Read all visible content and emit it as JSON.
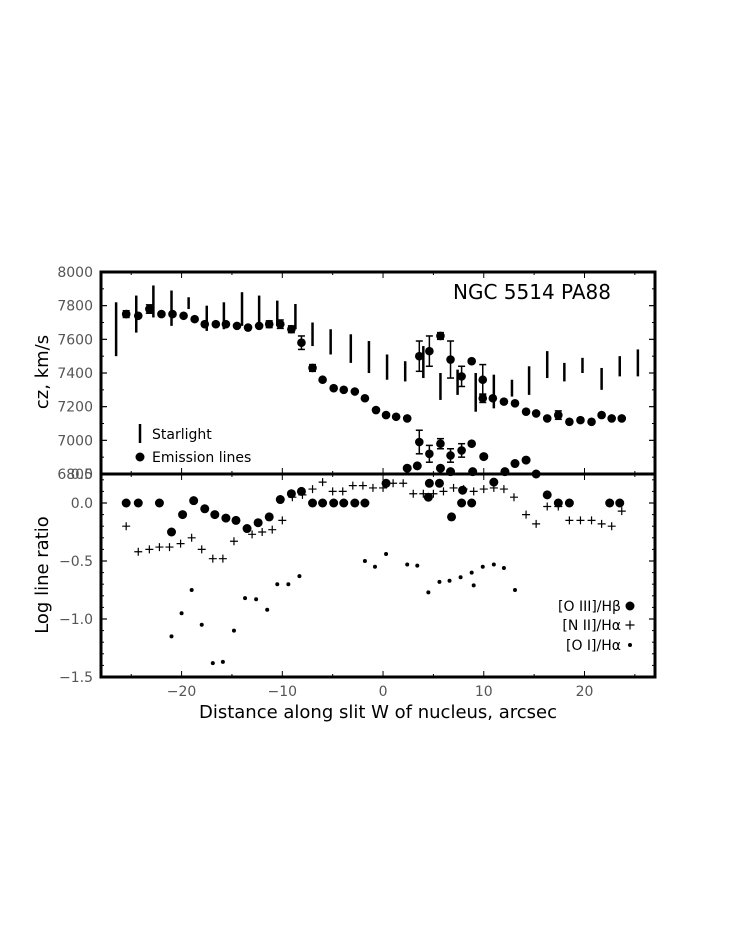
{
  "chart_data": [
    {
      "type": "scatter",
      "title": "NGC 5514 PA88",
      "ylabel": "cz, km/s",
      "xlim": [
        -28,
        27
      ],
      "ylim": [
        6800,
        8000
      ],
      "yticks": [
        6800,
        7000,
        7200,
        7400,
        7600,
        7800,
        8000
      ],
      "yticklabels": [
        "6800",
        "7000",
        "7200",
        "7400",
        "7600",
        "7800",
        "8000"
      ],
      "legend": {
        "placement": "bottom-left"
      },
      "series": [
        {
          "name": "Starlight",
          "marker": "vertical-bar",
          "points": [
            {
              "x": -26.5,
              "low": 7500,
              "high": 7820
            },
            {
              "x": -24.5,
              "low": 7640,
              "high": 7860
            },
            {
              "x": -22.8,
              "low": 7730,
              "high": 7920
            },
            {
              "x": -21.0,
              "low": 7680,
              "high": 7890
            },
            {
              "x": -19.3,
              "low": 7780,
              "high": 7850
            },
            {
              "x": -17.5,
              "low": 7650,
              "high": 7800
            },
            {
              "x": -15.8,
              "low": 7660,
              "high": 7820
            },
            {
              "x": -14.0,
              "low": 7680,
              "high": 7880
            },
            {
              "x": -12.3,
              "low": 7680,
              "high": 7860
            },
            {
              "x": -10.5,
              "low": 7680,
              "high": 7830
            },
            {
              "x": -8.7,
              "low": 7660,
              "high": 7810
            },
            {
              "x": -7.0,
              "low": 7560,
              "high": 7700
            },
            {
              "x": -5.2,
              "low": 7510,
              "high": 7660
            },
            {
              "x": -3.2,
              "low": 7460,
              "high": 7630
            },
            {
              "x": -1.4,
              "low": 7400,
              "high": 7590
            },
            {
              "x": 0.4,
              "low": 7360,
              "high": 7510
            },
            {
              "x": 2.2,
              "low": 7350,
              "high": 7470
            },
            {
              "x": 4.0,
              "low": 7370,
              "high": 7560
            },
            {
              "x": 5.7,
              "low": 7240,
              "high": 7400
            },
            {
              "x": 7.4,
              "low": 7270,
              "high": 7420
            },
            {
              "x": 9.2,
              "low": 7170,
              "high": 7400
            },
            {
              "x": 11.0,
              "low": 7190,
              "high": 7390
            },
            {
              "x": 12.8,
              "low": 7260,
              "high": 7360
            },
            {
              "x": 14.5,
              "low": 7270,
              "high": 7440
            },
            {
              "x": 16.3,
              "low": 7370,
              "high": 7530
            },
            {
              "x": 18.0,
              "low": 7350,
              "high": 7460
            },
            {
              "x": 19.8,
              "low": 7400,
              "high": 7490
            },
            {
              "x": 21.7,
              "low": 7300,
              "high": 7430
            },
            {
              "x": 23.5,
              "low": 7380,
              "high": 7500
            },
            {
              "x": 25.3,
              "low": 7380,
              "high": 7540
            }
          ]
        },
        {
          "name": "Emission lines",
          "marker": "circle",
          "points": [
            {
              "x": -25.5,
              "y": 7750,
              "err": 20
            },
            {
              "x": -24.3,
              "y": 7740
            },
            {
              "x": -23.2,
              "y": 7780,
              "err": 25
            },
            {
              "x": -22.0,
              "y": 7750
            },
            {
              "x": -20.9,
              "y": 7750
            },
            {
              "x": -19.8,
              "y": 7740
            },
            {
              "x": -18.7,
              "y": 7720
            },
            {
              "x": -17.7,
              "y": 7690
            },
            {
              "x": -16.6,
              "y": 7690
            },
            {
              "x": -15.6,
              "y": 7690
            },
            {
              "x": -14.5,
              "y": 7680
            },
            {
              "x": -13.4,
              "y": 7670
            },
            {
              "x": -12.3,
              "y": 7680
            },
            {
              "x": -11.3,
              "y": 7690,
              "err": 20
            },
            {
              "x": -10.2,
              "y": 7690,
              "err": 25
            },
            {
              "x": -9.1,
              "y": 7660,
              "err": 20
            },
            {
              "x": -8.1,
              "y": 7580,
              "err": 40
            },
            {
              "x": -7.0,
              "y": 7430,
              "err": 20
            },
            {
              "x": -6.0,
              "y": 7360
            },
            {
              "x": -4.9,
              "y": 7310
            },
            {
              "x": -3.9,
              "y": 7300
            },
            {
              "x": -2.8,
              "y": 7290
            },
            {
              "x": -1.8,
              "y": 7250
            },
            {
              "x": -0.7,
              "y": 7180
            },
            {
              "x": 0.3,
              "y": 7150
            },
            {
              "x": 1.3,
              "y": 7140
            },
            {
              "x": 2.4,
              "y": 7130
            },
            {
              "x": 3.6,
              "y": 7500,
              "err": 90
            },
            {
              "x": 4.6,
              "y": 7530,
              "err": 90
            },
            {
              "x": 5.7,
              "y": 7620,
              "err": 20
            },
            {
              "x": 6.7,
              "y": 7480,
              "err": 110
            },
            {
              "x": 7.8,
              "y": 7380,
              "err": 60
            },
            {
              "x": 8.8,
              "y": 7470
            },
            {
              "x": 9.9,
              "y": 7360,
              "err": 90
            },
            {
              "x": 10.9,
              "y": 7250
            },
            {
              "x": 12.0,
              "y": 7230
            },
            {
              "x": 13.1,
              "y": 7220
            },
            {
              "x": 14.2,
              "y": 7170
            },
            {
              "x": 15.2,
              "y": 7160
            },
            {
              "x": 16.3,
              "y": 7130
            },
            {
              "x": 17.4,
              "y": 7150,
              "err": 25
            },
            {
              "x": 18.5,
              "y": 7110
            },
            {
              "x": 19.6,
              "y": 7120
            },
            {
              "x": 20.7,
              "y": 7110
            },
            {
              "x": 21.7,
              "y": 7150
            },
            {
              "x": 22.7,
              "y": 7130
            },
            {
              "x": 23.7,
              "y": 7130
            },
            {
              "x": 3.6,
              "y": 6990,
              "err": 70
            },
            {
              "x": 4.6,
              "y": 6920,
              "err": 50
            },
            {
              "x": 5.7,
              "y": 6980,
              "err": 30
            },
            {
              "x": 6.7,
              "y": 6910,
              "err": 40
            },
            {
              "x": 7.8,
              "y": 6940,
              "err": 40
            },
            {
              "x": 8.8,
              "y": 6980
            },
            {
              "x": 9.9,
              "y": 7250,
              "err": 25
            }
          ]
        }
      ]
    },
    {
      "type": "scatter",
      "ylabel": "Log line ratio",
      "xlabel": "Distance along slit W of nucleus, arcsec",
      "xlim": [
        -28,
        27
      ],
      "ylim": [
        -1.5,
        0.25
      ],
      "xticks": [
        -20,
        -10,
        0,
        10,
        20
      ],
      "xticklabels": [
        "−20",
        "−10",
        "0",
        "10",
        "20"
      ],
      "yticks": [
        -1.5,
        -1.0,
        -0.5,
        0.0
      ],
      "yticklabels": [
        "−1.5",
        "−1.0",
        "−0.5",
        "0.0"
      ],
      "top_tick_label": "0.5",
      "legend": {
        "placement": "bottom-right"
      },
      "series": [
        {
          "name": "[O III]/Hβ",
          "marker": "large-dot",
          "points": [
            {
              "x": -25.5,
              "y": 0.0
            },
            {
              "x": -24.3,
              "y": 0.0
            },
            {
              "x": -22.2,
              "y": 0.0
            },
            {
              "x": -21.0,
              "y": -0.25
            },
            {
              "x": -19.9,
              "y": -0.1
            },
            {
              "x": -18.8,
              "y": 0.02
            },
            {
              "x": -17.7,
              "y": -0.05
            },
            {
              "x": -16.7,
              "y": -0.1
            },
            {
              "x": -15.6,
              "y": -0.13
            },
            {
              "x": -14.6,
              "y": -0.15
            },
            {
              "x": -13.5,
              "y": -0.22
            },
            {
              "x": -12.4,
              "y": -0.17
            },
            {
              "x": -11.3,
              "y": -0.12
            },
            {
              "x": -10.2,
              "y": 0.03
            },
            {
              "x": -9.1,
              "y": 0.08
            },
            {
              "x": -8.1,
              "y": 0.1
            },
            {
              "x": -7.0,
              "y": 0.0
            },
            {
              "x": -6.0,
              "y": 0.0
            },
            {
              "x": -4.9,
              "y": 0.0
            },
            {
              "x": -3.9,
              "y": 0.0
            },
            {
              "x": -2.8,
              "y": 0.0
            },
            {
              "x": -1.8,
              "y": 0.0
            },
            {
              "x": 0.3,
              "y": 0.17
            },
            {
              "x": 2.4,
              "y": 0.3
            },
            {
              "x": 3.4,
              "y": 0.32
            },
            {
              "x": 4.5,
              "y": 0.05
            },
            {
              "x": 4.6,
              "y": 0.17
            },
            {
              "x": 5.6,
              "y": 0.17
            },
            {
              "x": 5.7,
              "y": 0.3
            },
            {
              "x": 6.7,
              "y": 0.27
            },
            {
              "x": 6.8,
              "y": -0.12
            },
            {
              "x": 7.8,
              "y": 0.0
            },
            {
              "x": 7.9,
              "y": 0.11
            },
            {
              "x": 8.8,
              "y": 0.0
            },
            {
              "x": 8.9,
              "y": 0.27
            },
            {
              "x": 10.0,
              "y": 0.4
            },
            {
              "x": 11.0,
              "y": 0.18
            },
            {
              "x": 12.1,
              "y": 0.27
            },
            {
              "x": 13.1,
              "y": 0.34
            },
            {
              "x": 14.2,
              "y": 0.37
            },
            {
              "x": 15.2,
              "y": 0.25
            },
            {
              "x": 16.3,
              "y": 0.07
            },
            {
              "x": 17.4,
              "y": 0.0
            },
            {
              "x": 18.5,
              "y": 0.0
            },
            {
              "x": 22.5,
              "y": 0.0
            },
            {
              "x": 23.5,
              "y": 0.0
            }
          ]
        },
        {
          "name": "[N II]/Hα",
          "marker": "plus",
          "points": [
            {
              "x": -25.5,
              "y": -0.2
            },
            {
              "x": -24.3,
              "y": -0.42
            },
            {
              "x": -23.2,
              "y": -0.4
            },
            {
              "x": -22.2,
              "y": -0.38
            },
            {
              "x": -21.2,
              "y": -0.38
            },
            {
              "x": -20.1,
              "y": -0.35
            },
            {
              "x": -19.0,
              "y": -0.3
            },
            {
              "x": -18.0,
              "y": -0.4
            },
            {
              "x": -16.9,
              "y": -0.48
            },
            {
              "x": -15.9,
              "y": -0.48
            },
            {
              "x": -14.8,
              "y": -0.33
            },
            {
              "x": -13.0,
              "y": -0.27
            },
            {
              "x": -12.0,
              "y": -0.25
            },
            {
              "x": -11.0,
              "y": -0.23
            },
            {
              "x": -10.0,
              "y": -0.15
            },
            {
              "x": -9.0,
              "y": 0.05
            },
            {
              "x": -8.0,
              "y": 0.07
            },
            {
              "x": -7.0,
              "y": 0.12
            },
            {
              "x": -6.0,
              "y": 0.18
            },
            {
              "x": -5.0,
              "y": 0.1
            },
            {
              "x": -4.0,
              "y": 0.1
            },
            {
              "x": -3.0,
              "y": 0.15
            },
            {
              "x": -2.0,
              "y": 0.15
            },
            {
              "x": -1.0,
              "y": 0.13
            },
            {
              "x": 0.0,
              "y": 0.13
            },
            {
              "x": 1.0,
              "y": 0.17
            },
            {
              "x": 2.0,
              "y": 0.17
            },
            {
              "x": 3.0,
              "y": 0.08
            },
            {
              "x": 4.0,
              "y": 0.08
            },
            {
              "x": 5.0,
              "y": 0.08
            },
            {
              "x": 6.0,
              "y": 0.1
            },
            {
              "x": 7.0,
              "y": 0.13
            },
            {
              "x": 8.0,
              "y": 0.12
            },
            {
              "x": 9.0,
              "y": 0.1
            },
            {
              "x": 10.0,
              "y": 0.12
            },
            {
              "x": 11.0,
              "y": 0.13
            },
            {
              "x": 12.0,
              "y": 0.12
            },
            {
              "x": 13.0,
              "y": 0.05
            },
            {
              "x": 14.2,
              "y": -0.1
            },
            {
              "x": 15.2,
              "y": -0.18
            },
            {
              "x": 16.3,
              "y": -0.03
            },
            {
              "x": 17.4,
              "y": -0.03
            },
            {
              "x": 18.5,
              "y": -0.15
            },
            {
              "x": 19.6,
              "y": -0.15
            },
            {
              "x": 20.7,
              "y": -0.15
            },
            {
              "x": 21.7,
              "y": -0.18
            },
            {
              "x": 22.7,
              "y": -0.2
            },
            {
              "x": 23.7,
              "y": -0.07
            }
          ]
        },
        {
          "name": "[O I]/Hα",
          "marker": "small-dot",
          "points": [
            {
              "x": -21.0,
              "y": -1.15
            },
            {
              "x": -20.0,
              "y": -0.95
            },
            {
              "x": -19.0,
              "y": -0.75
            },
            {
              "x": -18.0,
              "y": -1.05
            },
            {
              "x": -16.9,
              "y": -1.38
            },
            {
              "x": -15.9,
              "y": -1.37
            },
            {
              "x": -14.8,
              "y": -1.1
            },
            {
              "x": -13.7,
              "y": -0.82
            },
            {
              "x": -12.6,
              "y": -0.83
            },
            {
              "x": -11.5,
              "y": -0.92
            },
            {
              "x": -10.5,
              "y": -0.7
            },
            {
              "x": -9.4,
              "y": -0.7
            },
            {
              "x": -8.3,
              "y": -0.63
            },
            {
              "x": -1.8,
              "y": -0.5
            },
            {
              "x": -0.8,
              "y": -0.55
            },
            {
              "x": 0.3,
              "y": -0.44
            },
            {
              "x": 2.4,
              "y": -0.53
            },
            {
              "x": 3.4,
              "y": -0.54
            },
            {
              "x": 4.5,
              "y": -0.77
            },
            {
              "x": 5.6,
              "y": -0.68
            },
            {
              "x": 6.6,
              "y": -0.67
            },
            {
              "x": 7.7,
              "y": -0.64
            },
            {
              "x": 8.8,
              "y": -0.6
            },
            {
              "x": 9.0,
              "y": -0.71
            },
            {
              "x": 9.9,
              "y": -0.55
            },
            {
              "x": 11.0,
              "y": -0.53
            },
            {
              "x": 12.0,
              "y": -0.56
            },
            {
              "x": 13.1,
              "y": -0.75
            }
          ]
        }
      ]
    }
  ]
}
